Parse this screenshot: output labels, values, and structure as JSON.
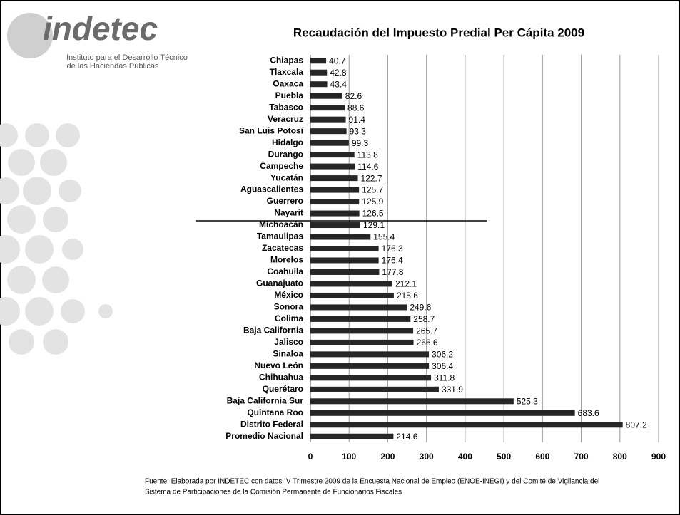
{
  "logo": {
    "name": "indetec",
    "subtitle": [
      "Instituto para el Desarrollo Técnico",
      "de las Haciendas Públicas"
    ]
  },
  "chart_data": {
    "type": "bar",
    "orientation": "horizontal",
    "title": "Recaudación del Impuesto Predial Per Cápita 2009",
    "categories": [
      "Chiapas",
      "Tlaxcala",
      "Oaxaca",
      "Puebla",
      "Tabasco",
      "Veracruz",
      "San Luis Potosí",
      "Hidalgo",
      "Durango",
      "Campeche",
      "Yucatán",
      "Aguascalientes",
      "Guerrero",
      "Nayarit",
      "Michoacán",
      "Tamaulipas",
      "Zacatecas",
      "Morelos",
      "Coahuila",
      "Guanajuato",
      "México",
      "Sonora",
      "Colima",
      "Baja California",
      "Jalisco",
      "Sinaloa",
      "Nuevo León",
      "Chihuahua",
      "Querétaro",
      "Baja California Sur",
      "Quintana Roo",
      "Distrito Federal",
      "Promedio Nacional"
    ],
    "values": [
      40.7,
      42.8,
      43.4,
      82.6,
      88.6,
      91.4,
      93.3,
      99.3,
      113.8,
      114.6,
      122.7,
      125.7,
      125.9,
      126.5,
      129.1,
      155.4,
      176.3,
      176.4,
      177.8,
      212.1,
      215.6,
      249.6,
      258.7,
      265.7,
      266.6,
      306.2,
      306.4,
      311.8,
      331.9,
      525.3,
      683.6,
      807.2,
      214.6
    ],
    "color": "#262626",
    "xlim": [
      0,
      900
    ],
    "xticks": [
      0,
      100,
      200,
      300,
      400,
      500,
      600,
      700,
      800,
      900
    ],
    "grid": true
  },
  "footnote": [
    "Fuente: Elaborada por INDETEC con datos IV Trimestre  2009 de la Encuesta Nacional de Empleo (ENOE-INEGI)  y del Comité de Vigilancia del",
    "Sistema de Participaciones de la Comisión Permanente de Funcionarios Fiscales"
  ]
}
